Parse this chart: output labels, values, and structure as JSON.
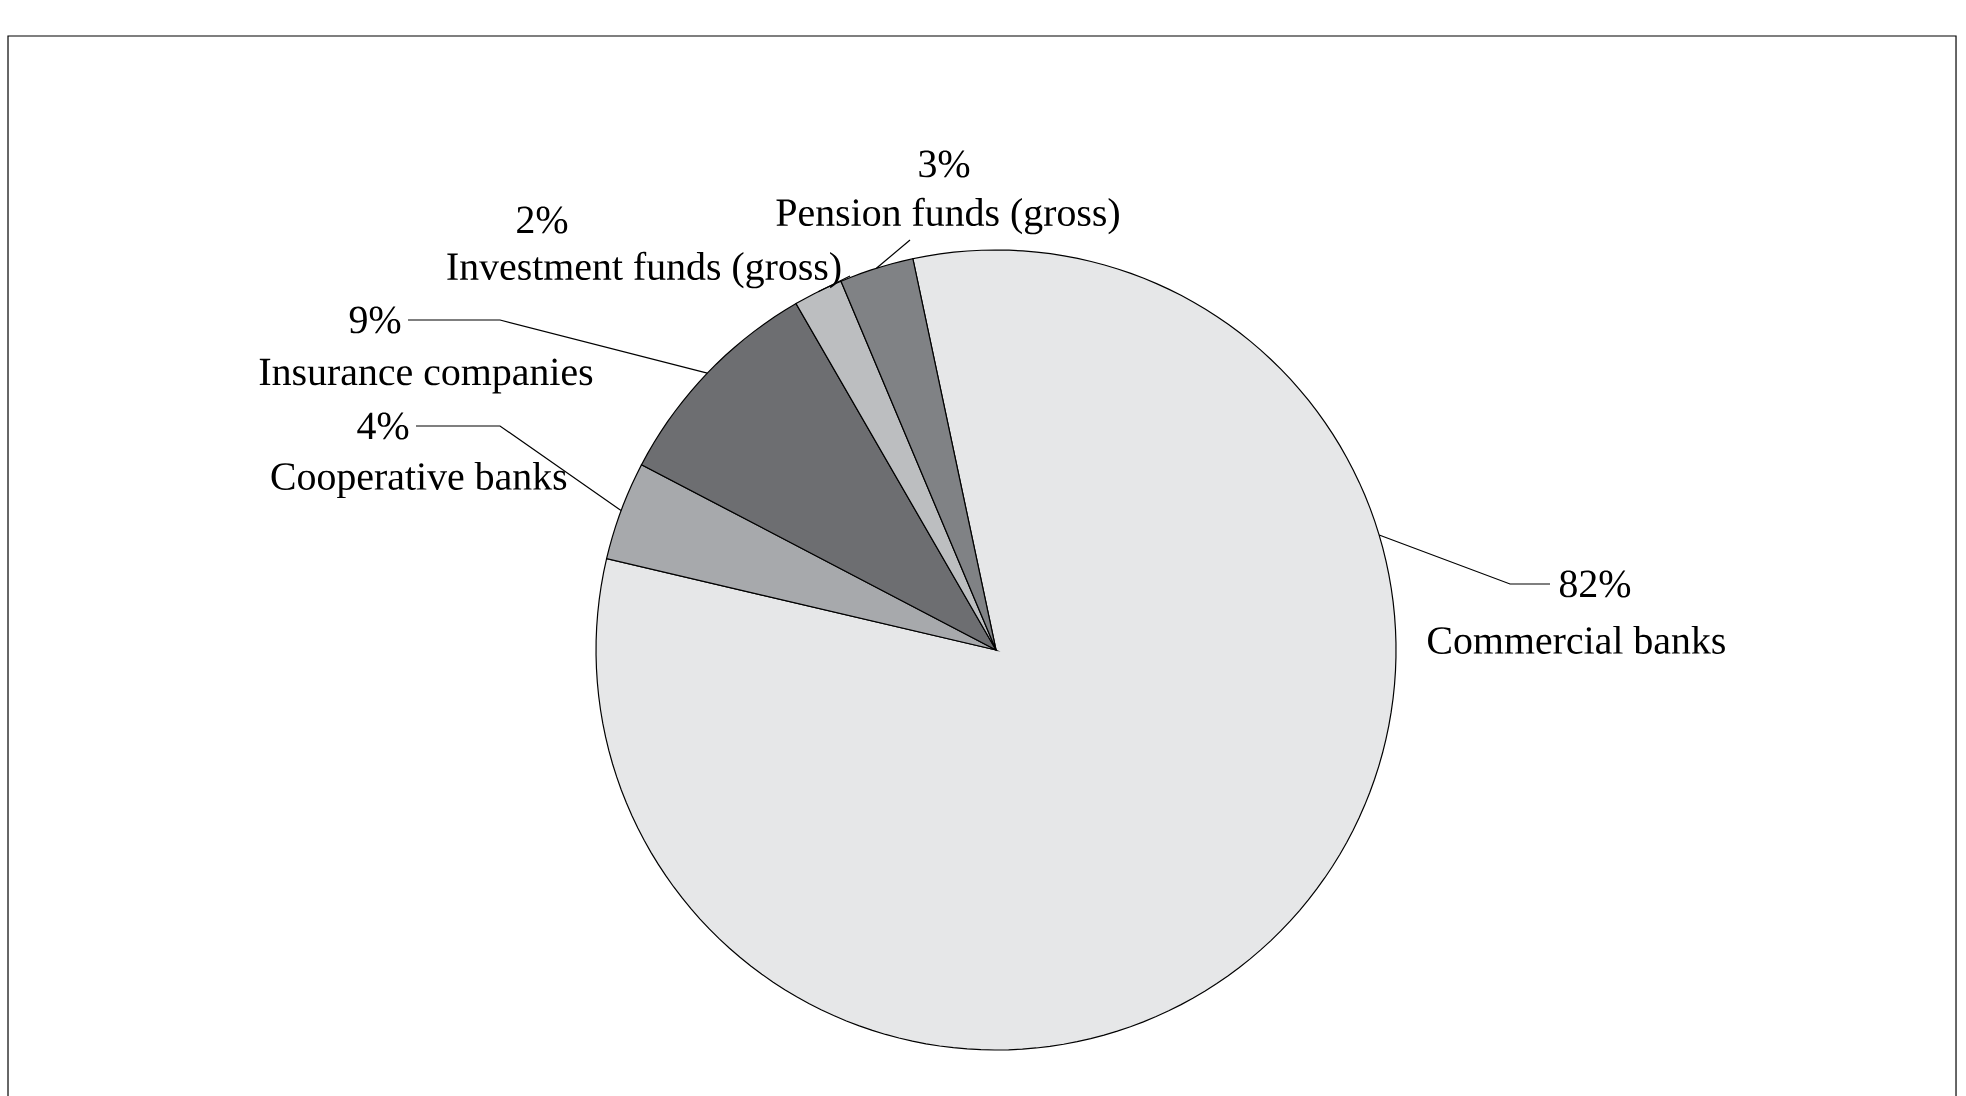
{
  "chart_data": {
    "type": "pie",
    "categories": [
      "Commercial banks",
      "Cooperative banks",
      "Insurance companies",
      "Investment funds (gross)",
      "Pension funds (gross)"
    ],
    "values": [
      82,
      4,
      9,
      2,
      3
    ],
    "value_labels": [
      "82%",
      "4%",
      "9%",
      "2%",
      "3%"
    ],
    "colors": [
      "#e6e7e8",
      "#a7a9ac",
      "#6d6e71",
      "#bcbec0",
      "#808285"
    ]
  }
}
